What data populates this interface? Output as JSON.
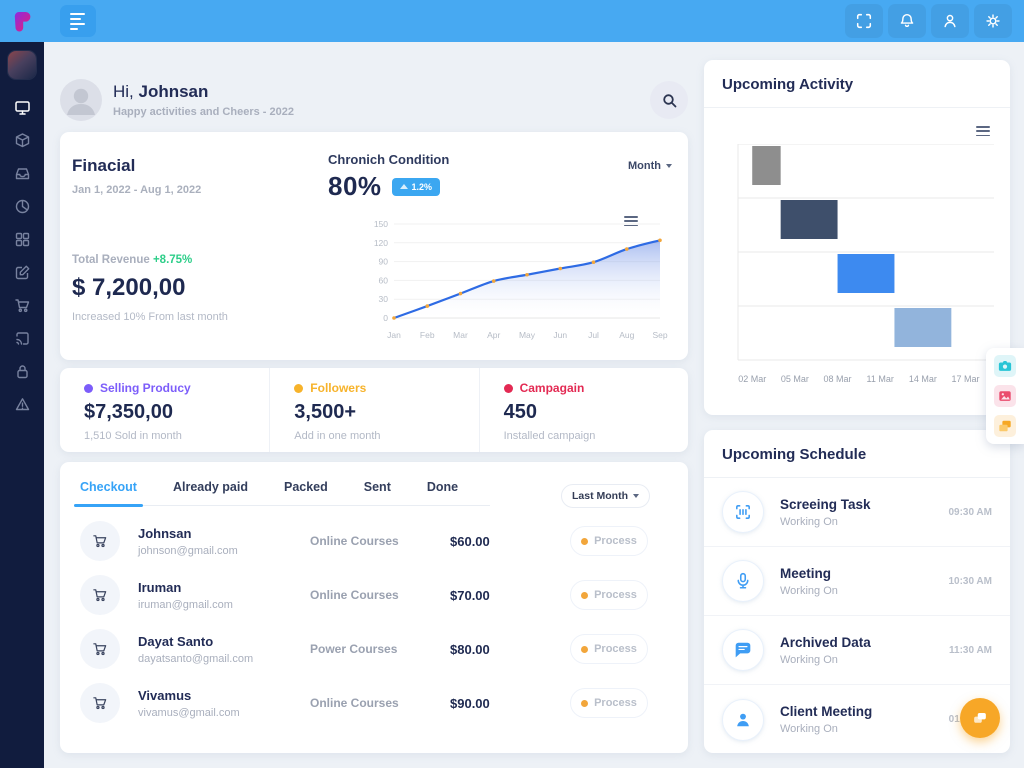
{
  "topbar": {
    "icons": [
      "fullscreen-icon",
      "bell-icon",
      "user-icon",
      "gear-icon"
    ],
    "color": "#47a9f2"
  },
  "sidebar": {
    "color": "#111c3e",
    "items": [
      "monitor",
      "package",
      "inbox",
      "pie-chart",
      "grid",
      "edit",
      "cart",
      "cast",
      "lock",
      "alert-triangle"
    ],
    "active_item": "monitor"
  },
  "header": {
    "greeting_prefix": "Hi, ",
    "username": "Johnsan",
    "subtitle": "Happy activities and Cheers - 2022"
  },
  "financial": {
    "title": "Finacial",
    "date_range": "Jan 1, 2022 - Aug 1, 2022",
    "condition_label": "Chronich Condition",
    "condition_value": "80%",
    "condition_delta": "1.2%",
    "period_selector": "Month",
    "revenue_label": "Total Revenue",
    "revenue_delta": "+8.75%",
    "revenue_value": "$ 7,200,00",
    "revenue_note": "Increased 10% From last month",
    "badge_color": "#3ba7f1",
    "delta_color": "#2dce89"
  },
  "stats": [
    {
      "label": "Selling Producy",
      "value": "$7,350,00",
      "note": "1,510 Sold in month",
      "color": "#7c5dfa"
    },
    {
      "label": "Followers",
      "value": "3,500+",
      "note": "Add in one month",
      "color": "#f7b32b"
    },
    {
      "label": "Campagain",
      "value": "450",
      "note": "Installed campaign",
      "color": "#e32a53"
    }
  ],
  "orders": {
    "tabs": [
      "Checkout",
      "Already paid",
      "Packed",
      "Sent",
      "Done"
    ],
    "active_tab": "Checkout",
    "period_selector": "Last Month",
    "rows": [
      {
        "name": "Johnsan",
        "email": "johnson@gmail.com",
        "product": "Online Courses",
        "price": "$60.00",
        "status": "Process"
      },
      {
        "name": "Iruman",
        "email": "iruman@gmail.com",
        "product": "Online Courses",
        "price": "$70.00",
        "status": "Process"
      },
      {
        "name": "Dayat Santo",
        "email": "dayatsanto@gmail.com",
        "product": "Power Courses",
        "price": "$80.00",
        "status": "Process"
      },
      {
        "name": "Vivamus",
        "email": "vivamus@gmail.com",
        "product": "Online Courses",
        "price": "$90.00",
        "status": "Process"
      }
    ]
  },
  "activity": {
    "title": "Upcoming Activity"
  },
  "schedule": {
    "title": "Upcoming Schedule",
    "items": [
      {
        "icon": "scan-icon",
        "title": "Screeing Task",
        "subtitle": "Working On",
        "time": "09:30 AM"
      },
      {
        "icon": "microphone-icon",
        "title": "Meeting",
        "subtitle": "Working On",
        "time": "10:30 AM"
      },
      {
        "icon": "chat-icon",
        "title": "Archived Data",
        "subtitle": "Working On",
        "time": "11:30 AM"
      },
      {
        "icon": "user-icon",
        "title": "Client Meeting",
        "subtitle": "Working On",
        "time": "01:30 PM"
      }
    ]
  },
  "quick_actions": {
    "icons": [
      "camera-icon",
      "image-icon",
      "copy-icon"
    ]
  },
  "fab": {
    "icon": "chat-forward-icon",
    "color": "#f7a727"
  },
  "chart_data": [
    {
      "name": "financial_trend",
      "type": "area",
      "title": "Finacial",
      "x": [
        "Jan",
        "Feb",
        "Mar",
        "Apr",
        "May",
        "Jun",
        "Jul",
        "Aug",
        "Sep"
      ],
      "values": [
        0,
        19,
        39,
        59,
        69,
        79,
        89,
        110,
        124
      ],
      "ylim": [
        0,
        150
      ],
      "yticks": [
        0,
        30,
        60,
        90,
        120,
        150
      ],
      "line_color": "#2e6be4",
      "marker_color": "#f2a63b",
      "grid": true,
      "legend": "none"
    },
    {
      "name": "upcoming_activity_timeline",
      "type": "bar",
      "orientation": "horizontal",
      "title": "Upcoming Activity",
      "x_ticks": [
        "02 Mar",
        "05 Mar",
        "08 Mar",
        "11 Mar",
        "14 Mar",
        "17 Mar"
      ],
      "x_range_days": [
        -1,
        17
      ],
      "bars": [
        {
          "row": 1,
          "start": "02 Mar",
          "end": "04 Mar",
          "start_day": 0,
          "end_day": 2,
          "color": "#8e8e8e"
        },
        {
          "row": 2,
          "start": "04 Mar",
          "end": "08 Mar",
          "start_day": 2,
          "end_day": 6,
          "color": "#3e4f6b"
        },
        {
          "row": 3,
          "start": "08 Mar",
          "end": "12 Mar",
          "start_day": 6,
          "end_day": 10,
          "color": "#3d8af0"
        },
        {
          "row": 4,
          "start": "12 Mar",
          "end": "16 Mar",
          "start_day": 10,
          "end_day": 14,
          "color": "#92b4dc"
        }
      ],
      "grid": true,
      "legend": "none"
    }
  ]
}
